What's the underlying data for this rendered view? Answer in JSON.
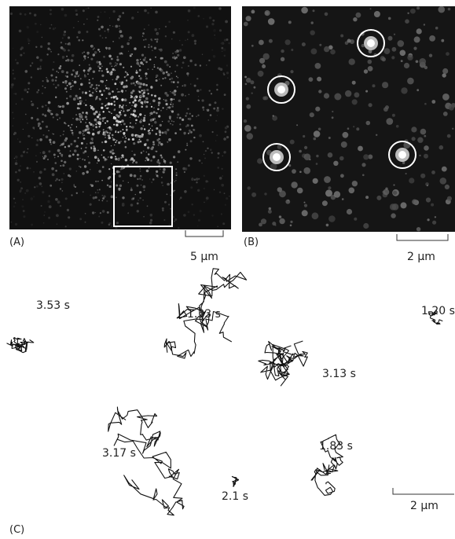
{
  "panels": {
    "A": {
      "label": "(A)",
      "scale_bar": "5 μm"
    },
    "B": {
      "label": "(B)",
      "scale_bar": "2 μm"
    },
    "C": {
      "label": "(C)",
      "scale_bar": "2 μm",
      "trajectories": [
        {
          "duration": "3.53 s"
        },
        {
          "duration": "1.33 s"
        },
        {
          "duration": "3.13 s"
        },
        {
          "duration": "1.20 s"
        },
        {
          "duration": "3.17 s"
        },
        {
          "duration": "2.1 s"
        },
        {
          "duration": "1.83 s"
        }
      ]
    }
  }
}
